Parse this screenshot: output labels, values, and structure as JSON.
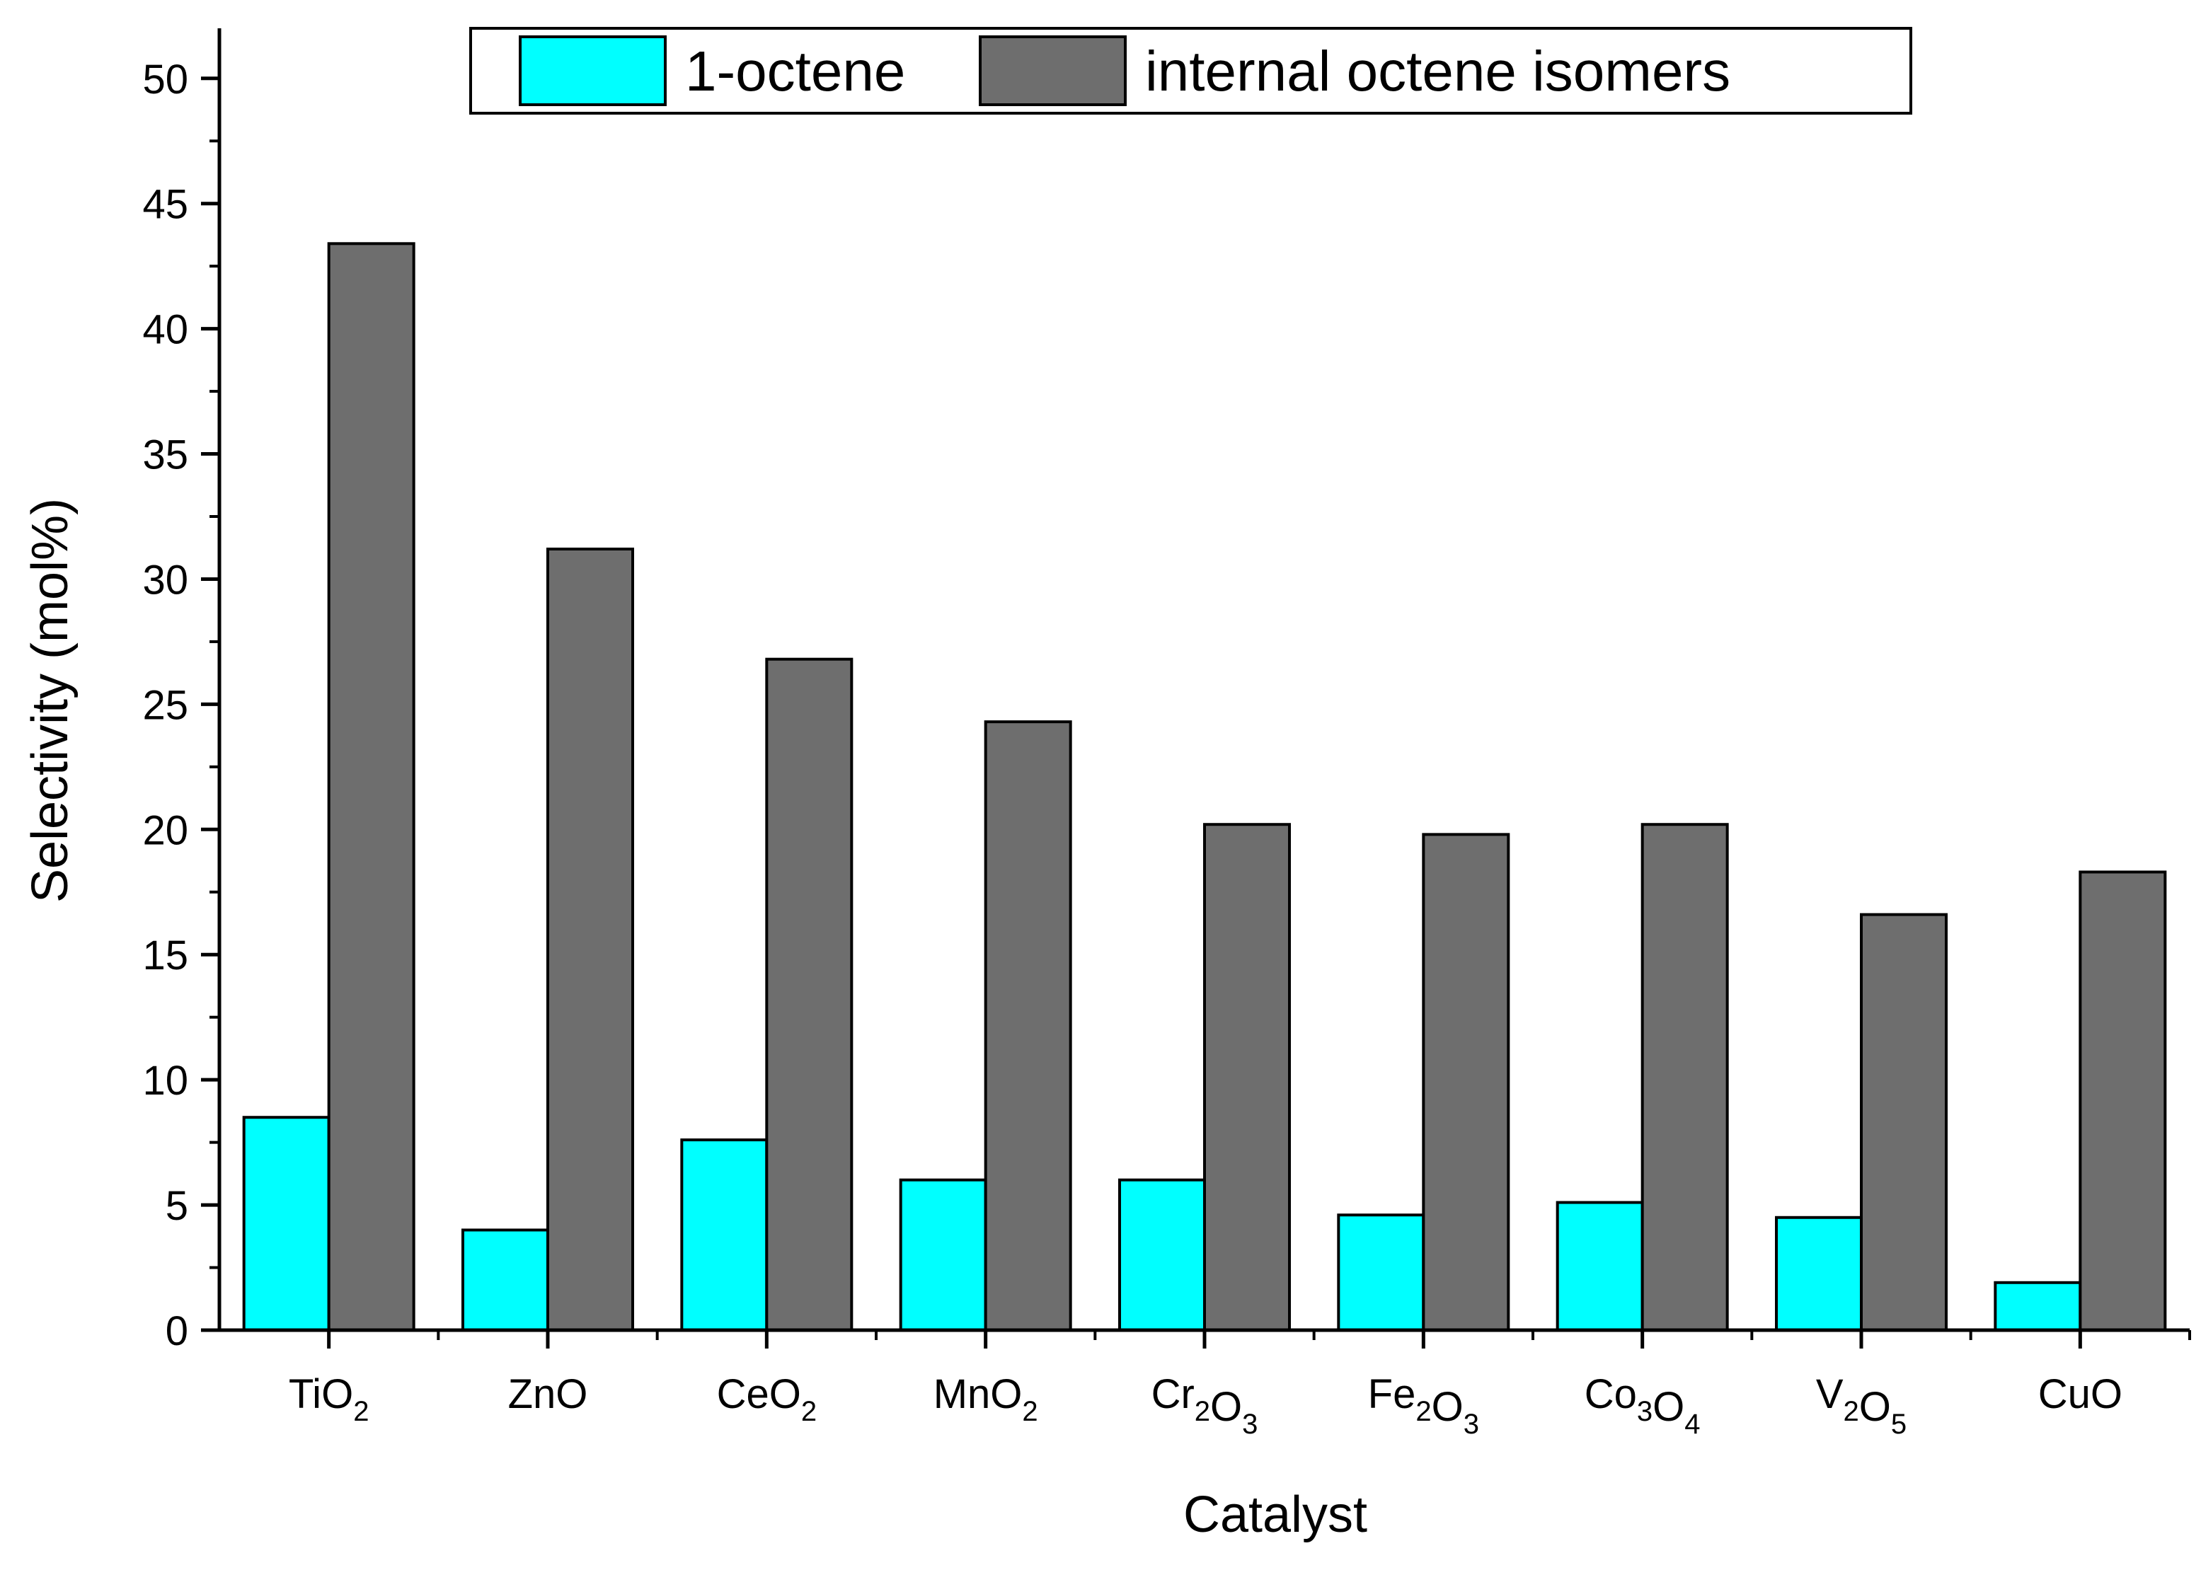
{
  "chart_data": {
    "type": "bar",
    "xlabel": "Catalyst",
    "ylabel": "Selectivity (mol%)",
    "ylim": [
      0,
      52
    ],
    "yticks": [
      0,
      5,
      10,
      15,
      20,
      25,
      30,
      35,
      40,
      45,
      50
    ],
    "grid": false,
    "legend_position": "top-center",
    "categories": [
      {
        "base": "TiO",
        "parts": [
          [
            "Ti",
            ""
          ],
          [
            "O",
            "2"
          ]
        ]
      },
      {
        "base": "ZnO",
        "parts": [
          [
            "ZnO",
            ""
          ]
        ]
      },
      {
        "base": "CeO",
        "parts": [
          [
            "Ce",
            ""
          ],
          [
            "O",
            "2"
          ]
        ]
      },
      {
        "base": "MnO",
        "parts": [
          [
            "Mn",
            ""
          ],
          [
            "O",
            "2"
          ]
        ]
      },
      {
        "base": "CrO",
        "parts": [
          [
            "Cr",
            "2"
          ],
          [
            "O",
            "3"
          ]
        ]
      },
      {
        "base": "FeO",
        "parts": [
          [
            "Fe",
            "2"
          ],
          [
            "O",
            "3"
          ]
        ]
      },
      {
        "base": "CoO",
        "parts": [
          [
            "Co",
            "3"
          ],
          [
            "O",
            "4"
          ]
        ]
      },
      {
        "base": "VO",
        "parts": [
          [
            "V",
            "2"
          ],
          [
            "O",
            "5"
          ]
        ]
      },
      {
        "base": "CuO",
        "parts": [
          [
            "CuO",
            ""
          ]
        ]
      }
    ],
    "series": [
      {
        "name": "1-octene",
        "color": "#00ffff",
        "values": [
          8.5,
          4.0,
          7.6,
          6.0,
          6.0,
          4.6,
          5.1,
          4.5,
          1.9
        ]
      },
      {
        "name": "internal octene isomers",
        "color": "#6e6e6e",
        "values": [
          43.4,
          31.2,
          26.8,
          24.3,
          20.2,
          19.8,
          20.2,
          16.6,
          18.3
        ]
      }
    ]
  }
}
